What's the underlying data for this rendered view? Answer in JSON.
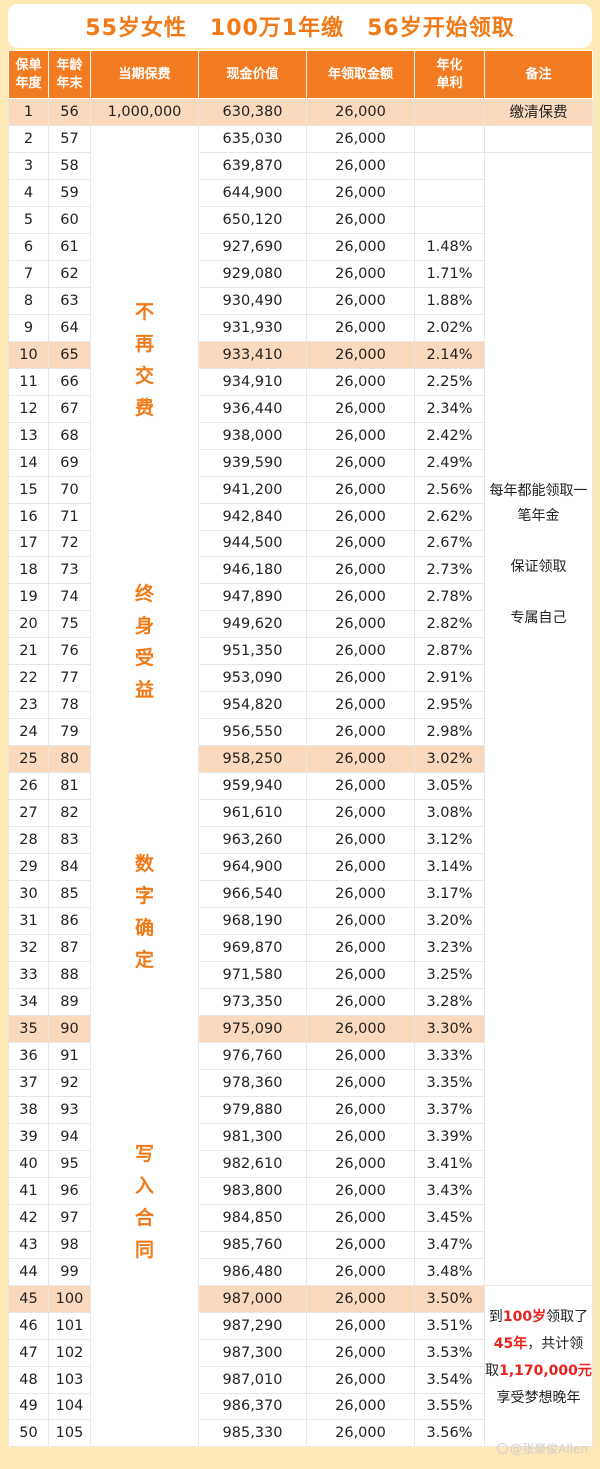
{
  "title": "55岁女性　100万1年缴　56岁开始领取",
  "headers": {
    "year": [
      "保单",
      "年度"
    ],
    "age": [
      "年龄",
      "年末"
    ],
    "premium": "当期保费",
    "cash_value": "现金价值",
    "annual_payout": "年领取金额",
    "rate": [
      "年化",
      "单利"
    ],
    "note": "备注"
  },
  "premium_value": "1,000,000",
  "first_note": "缴清保费",
  "vertical_words": [
    "不再交费",
    "终身受益",
    "数字确定",
    "写入合同"
  ],
  "mid_note": {
    "line1": "每年都能领取一",
    "line2": "笔年金",
    "line3": "保证领取",
    "line4": "专属自己"
  },
  "end_note": {
    "p1": "到",
    "p2": "100岁",
    "p3": "领取了",
    "p4": "45年",
    "p5": "，共计领",
    "p6": "取",
    "p7": "1,170,000元",
    "p8": "享受梦想晚年"
  },
  "highlight_years": [
    1,
    10,
    25,
    35,
    45
  ],
  "rows": [
    {
      "year": "1",
      "age": "56",
      "cash": "630,380",
      "pay": "26,000",
      "rate": ""
    },
    {
      "year": "2",
      "age": "57",
      "cash": "635,030",
      "pay": "26,000",
      "rate": ""
    },
    {
      "year": "3",
      "age": "58",
      "cash": "639,870",
      "pay": "26,000",
      "rate": ""
    },
    {
      "year": "4",
      "age": "59",
      "cash": "644,900",
      "pay": "26,000",
      "rate": ""
    },
    {
      "year": "5",
      "age": "60",
      "cash": "650,120",
      "pay": "26,000",
      "rate": ""
    },
    {
      "year": "6",
      "age": "61",
      "cash": "927,690",
      "pay": "26,000",
      "rate": "1.48%"
    },
    {
      "year": "7",
      "age": "62",
      "cash": "929,080",
      "pay": "26,000",
      "rate": "1.71%"
    },
    {
      "year": "8",
      "age": "63",
      "cash": "930,490",
      "pay": "26,000",
      "rate": "1.88%"
    },
    {
      "year": "9",
      "age": "64",
      "cash": "931,930",
      "pay": "26,000",
      "rate": "2.02%"
    },
    {
      "year": "10",
      "age": "65",
      "cash": "933,410",
      "pay": "26,000",
      "rate": "2.14%"
    },
    {
      "year": "11",
      "age": "66",
      "cash": "934,910",
      "pay": "26,000",
      "rate": "2.25%"
    },
    {
      "year": "12",
      "age": "67",
      "cash": "936,440",
      "pay": "26,000",
      "rate": "2.34%"
    },
    {
      "year": "13",
      "age": "68",
      "cash": "938,000",
      "pay": "26,000",
      "rate": "2.42%"
    },
    {
      "year": "14",
      "age": "69",
      "cash": "939,590",
      "pay": "26,000",
      "rate": "2.49%"
    },
    {
      "year": "15",
      "age": "70",
      "cash": "941,200",
      "pay": "26,000",
      "rate": "2.56%"
    },
    {
      "year": "16",
      "age": "71",
      "cash": "942,840",
      "pay": "26,000",
      "rate": "2.62%"
    },
    {
      "year": "17",
      "age": "72",
      "cash": "944,500",
      "pay": "26,000",
      "rate": "2.67%"
    },
    {
      "year": "18",
      "age": "73",
      "cash": "946,180",
      "pay": "26,000",
      "rate": "2.73%"
    },
    {
      "year": "19",
      "age": "74",
      "cash": "947,890",
      "pay": "26,000",
      "rate": "2.78%"
    },
    {
      "year": "20",
      "age": "75",
      "cash": "949,620",
      "pay": "26,000",
      "rate": "2.82%"
    },
    {
      "year": "21",
      "age": "76",
      "cash": "951,350",
      "pay": "26,000",
      "rate": "2.87%"
    },
    {
      "year": "22",
      "age": "77",
      "cash": "953,090",
      "pay": "26,000",
      "rate": "2.91%"
    },
    {
      "year": "23",
      "age": "78",
      "cash": "954,820",
      "pay": "26,000",
      "rate": "2.95%"
    },
    {
      "year": "24",
      "age": "79",
      "cash": "956,550",
      "pay": "26,000",
      "rate": "2.98%"
    },
    {
      "year": "25",
      "age": "80",
      "cash": "958,250",
      "pay": "26,000",
      "rate": "3.02%"
    },
    {
      "year": "26",
      "age": "81",
      "cash": "959,940",
      "pay": "26,000",
      "rate": "3.05%"
    },
    {
      "year": "27",
      "age": "82",
      "cash": "961,610",
      "pay": "26,000",
      "rate": "3.08%"
    },
    {
      "year": "28",
      "age": "83",
      "cash": "963,260",
      "pay": "26,000",
      "rate": "3.12%"
    },
    {
      "year": "29",
      "age": "84",
      "cash": "964,900",
      "pay": "26,000",
      "rate": "3.14%"
    },
    {
      "year": "30",
      "age": "85",
      "cash": "966,540",
      "pay": "26,000",
      "rate": "3.17%"
    },
    {
      "year": "31",
      "age": "86",
      "cash": "968,190",
      "pay": "26,000",
      "rate": "3.20%"
    },
    {
      "year": "32",
      "age": "87",
      "cash": "969,870",
      "pay": "26,000",
      "rate": "3.23%"
    },
    {
      "year": "33",
      "age": "88",
      "cash": "971,580",
      "pay": "26,000",
      "rate": "3.25%"
    },
    {
      "year": "34",
      "age": "89",
      "cash": "973,350",
      "pay": "26,000",
      "rate": "3.28%"
    },
    {
      "year": "35",
      "age": "90",
      "cash": "975,090",
      "pay": "26,000",
      "rate": "3.30%"
    },
    {
      "year": "36",
      "age": "91",
      "cash": "976,760",
      "pay": "26,000",
      "rate": "3.33%"
    },
    {
      "year": "37",
      "age": "92",
      "cash": "978,360",
      "pay": "26,000",
      "rate": "3.35%"
    },
    {
      "year": "38",
      "age": "93",
      "cash": "979,880",
      "pay": "26,000",
      "rate": "3.37%"
    },
    {
      "year": "39",
      "age": "94",
      "cash": "981,300",
      "pay": "26,000",
      "rate": "3.39%"
    },
    {
      "year": "40",
      "age": "95",
      "cash": "982,610",
      "pay": "26,000",
      "rate": "3.41%"
    },
    {
      "year": "41",
      "age": "96",
      "cash": "983,800",
      "pay": "26,000",
      "rate": "3.43%"
    },
    {
      "year": "42",
      "age": "97",
      "cash": "984,850",
      "pay": "26,000",
      "rate": "3.45%"
    },
    {
      "year": "43",
      "age": "98",
      "cash": "985,760",
      "pay": "26,000",
      "rate": "3.47%"
    },
    {
      "year": "44",
      "age": "99",
      "cash": "986,480",
      "pay": "26,000",
      "rate": "3.48%"
    },
    {
      "year": "45",
      "age": "100",
      "cash": "987,000",
      "pay": "26,000",
      "rate": "3.50%"
    },
    {
      "year": "46",
      "age": "101",
      "cash": "987,290",
      "pay": "26,000",
      "rate": "3.51%"
    },
    {
      "year": "47",
      "age": "102",
      "cash": "987,300",
      "pay": "26,000",
      "rate": "3.53%"
    },
    {
      "year": "48",
      "age": "103",
      "cash": "987,010",
      "pay": "26,000",
      "rate": "3.54%"
    },
    {
      "year": "49",
      "age": "104",
      "cash": "986,370",
      "pay": "26,000",
      "rate": "3.55%"
    },
    {
      "year": "50",
      "age": "105",
      "cash": "985,330",
      "pay": "26,000",
      "rate": "3.56%"
    }
  ],
  "watermark": "@张豪俊Allen",
  "colors": {
    "header": "#f37b21",
    "highlight": "#fbd9bd",
    "title": "#f07a18",
    "accent_red": "#e8231c",
    "background": "#fde9b6"
  }
}
